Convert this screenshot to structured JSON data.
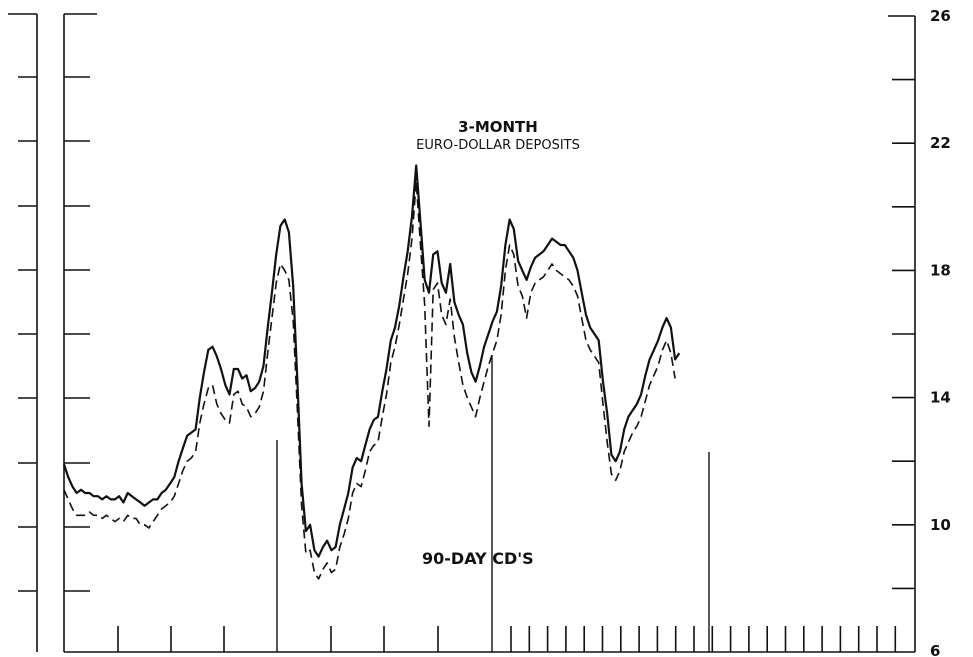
{
  "chart_data": {
    "type": "line",
    "title": "",
    "xlabel": "",
    "ylabel": "",
    "ylim": [
      6,
      26
    ],
    "y_ticks_labeled": [
      6,
      10,
      14,
      18,
      22,
      26
    ],
    "y_ticks_minor": [
      8,
      12,
      16,
      20,
      24
    ],
    "grid": false,
    "legend": "none",
    "x_index_range": [
      0,
      160
    ],
    "annotations": [
      {
        "text": "3-MONTH",
        "bold": true
      },
      {
        "text": "EURO-DOLLAR DEPOSITS",
        "bold": false
      },
      {
        "text": "90-DAY CD'S",
        "bold": true
      }
    ],
    "series": [
      {
        "style": "solid",
        "color": "#111111",
        "values": [
          11.9,
          11.5,
          11.2,
          11.0,
          11.1,
          11.0,
          11.0,
          10.9,
          10.9,
          10.8,
          10.9,
          10.8,
          10.8,
          10.9,
          10.7,
          11.0,
          10.9,
          10.8,
          10.7,
          10.6,
          10.7,
          10.8,
          10.8,
          11.0,
          11.1,
          11.3,
          11.5,
          12.0,
          12.4,
          12.8,
          12.9,
          13.0,
          14.0,
          14.8,
          15.5,
          15.6,
          15.3,
          14.9,
          14.4,
          14.1,
          14.9,
          14.9,
          14.6,
          14.7,
          14.2,
          14.3,
          14.5,
          15.0,
          16.2,
          17.3,
          18.5,
          19.4,
          19.6,
          19.2,
          17.5,
          14.5,
          11.3,
          9.8,
          10.0,
          9.2,
          9.0,
          9.3,
          9.5,
          9.2,
          9.3,
          10.0,
          10.5,
          11.0,
          11.8,
          12.1,
          12.0,
          12.5,
          13.0,
          13.3,
          13.4,
          14.2,
          14.9,
          15.8,
          16.2,
          16.9,
          17.8,
          18.6,
          19.7,
          21.3,
          19.5,
          17.7,
          17.3,
          18.5,
          18.6,
          17.6,
          17.3,
          18.2,
          17.0,
          16.6,
          16.3,
          15.4,
          14.8,
          14.5,
          15.0,
          15.6,
          16.0,
          16.4,
          16.7,
          17.5,
          18.8,
          19.6,
          19.3,
          18.3,
          18.0,
          17.7,
          18.1,
          18.4,
          18.5,
          18.6,
          18.8,
          19.0,
          18.9,
          18.8,
          18.8,
          18.6,
          18.4,
          18.0,
          17.3,
          16.6,
          16.2,
          16.0,
          15.8,
          14.5,
          13.5,
          12.2,
          12.0,
          12.3,
          13.0,
          13.4,
          13.6,
          13.8,
          14.1,
          14.7,
          15.2,
          15.5,
          15.8,
          16.2,
          16.5,
          16.2,
          15.2,
          15.4
        ],
        "x_start": 0
      },
      {
        "style": "dashed",
        "color": "#111111",
        "values": [
          11.1,
          10.8,
          10.5,
          10.3,
          10.3,
          10.3,
          10.4,
          10.3,
          10.3,
          10.2,
          10.3,
          10.2,
          10.1,
          10.2,
          10.1,
          10.3,
          10.2,
          10.2,
          10.0,
          10.0,
          9.9,
          10.1,
          10.3,
          10.5,
          10.6,
          10.7,
          10.9,
          11.3,
          11.7,
          12.0,
          12.1,
          12.3,
          13.2,
          13.8,
          14.3,
          14.4,
          13.8,
          13.5,
          13.3,
          13.2,
          14.1,
          14.2,
          13.8,
          13.7,
          13.4,
          13.5,
          13.7,
          14.2,
          15.4,
          16.5,
          17.6,
          18.2,
          18.0,
          17.7,
          16.4,
          13.6,
          10.6,
          9.1,
          9.2,
          8.5,
          8.3,
          8.6,
          8.8,
          8.5,
          8.6,
          9.3,
          9.7,
          10.2,
          11.0,
          11.3,
          11.2,
          11.7,
          12.3,
          12.5,
          12.6,
          13.4,
          14.1,
          15.1,
          15.6,
          16.3,
          17.1,
          17.9,
          19.0,
          20.8,
          18.8,
          16.9,
          13.1,
          17.4,
          17.6,
          16.6,
          16.3,
          17.1,
          15.9,
          15.1,
          14.4,
          14.0,
          13.7,
          13.4,
          14.0,
          14.5,
          15.0,
          15.4,
          15.8,
          16.6,
          18.0,
          18.8,
          18.5,
          17.5,
          17.2,
          16.5,
          17.3,
          17.6,
          17.7,
          17.8,
          18.0,
          18.2,
          18.0,
          17.9,
          17.8,
          17.7,
          17.5,
          17.2,
          16.5,
          15.8,
          15.5,
          15.3,
          15.1,
          13.8,
          12.6,
          11.6,
          11.4,
          11.7,
          12.3,
          12.6,
          12.9,
          13.1,
          13.4,
          13.9,
          14.4,
          14.7,
          15.0,
          15.5,
          15.8,
          15.4,
          14.6
        ],
        "x_start": 0
      }
    ]
  }
}
